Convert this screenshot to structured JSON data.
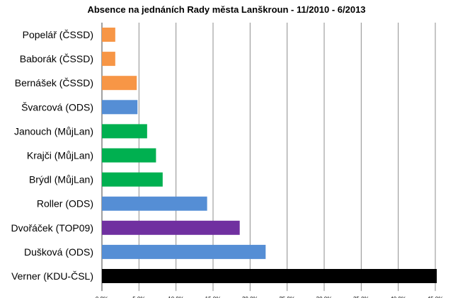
{
  "chart_data": {
    "type": "bar",
    "orientation": "horizontal",
    "title": "Absence na jednáních Rady města Lanškroun - 11/2010 - 6/2013",
    "xlabel": "",
    "ylabel": "",
    "xlim": [
      0,
      45
    ],
    "x_ticks": [
      0,
      5,
      10,
      15,
      20,
      25,
      30,
      35,
      40,
      45
    ],
    "x_tick_labels": [
      "0,0%",
      "5,0%",
      "10,0%",
      "15,0%",
      "20,0%",
      "25,0%",
      "30,0%",
      "35,0%",
      "40,0%",
      "45,0%"
    ],
    "grid": "vertical",
    "legend": "none",
    "categories": [
      "Popelář (ČSSD)",
      "Baborák (ČSSD)",
      "Bernášek (ČSSD)",
      "Švarcová (ODS)",
      "Janouch (MůjLan)",
      "Krajči (MůjLan)",
      "Brýdl (MůjLan)",
      "Roller (ODS)",
      "Dvořáček (TOP09)",
      "Dušková (ODS)",
      "Verner (KDU-ČSL)"
    ],
    "values": [
      1.8,
      1.8,
      4.7,
      4.8,
      6.1,
      7.3,
      8.2,
      14.2,
      18.6,
      22.1,
      45.2
    ],
    "colors": [
      "#f79646",
      "#f79646",
      "#f79646",
      "#558ed5",
      "#00b050",
      "#00b050",
      "#00b050",
      "#558ed5",
      "#7030a0",
      "#558ed5",
      "#000000"
    ]
  }
}
